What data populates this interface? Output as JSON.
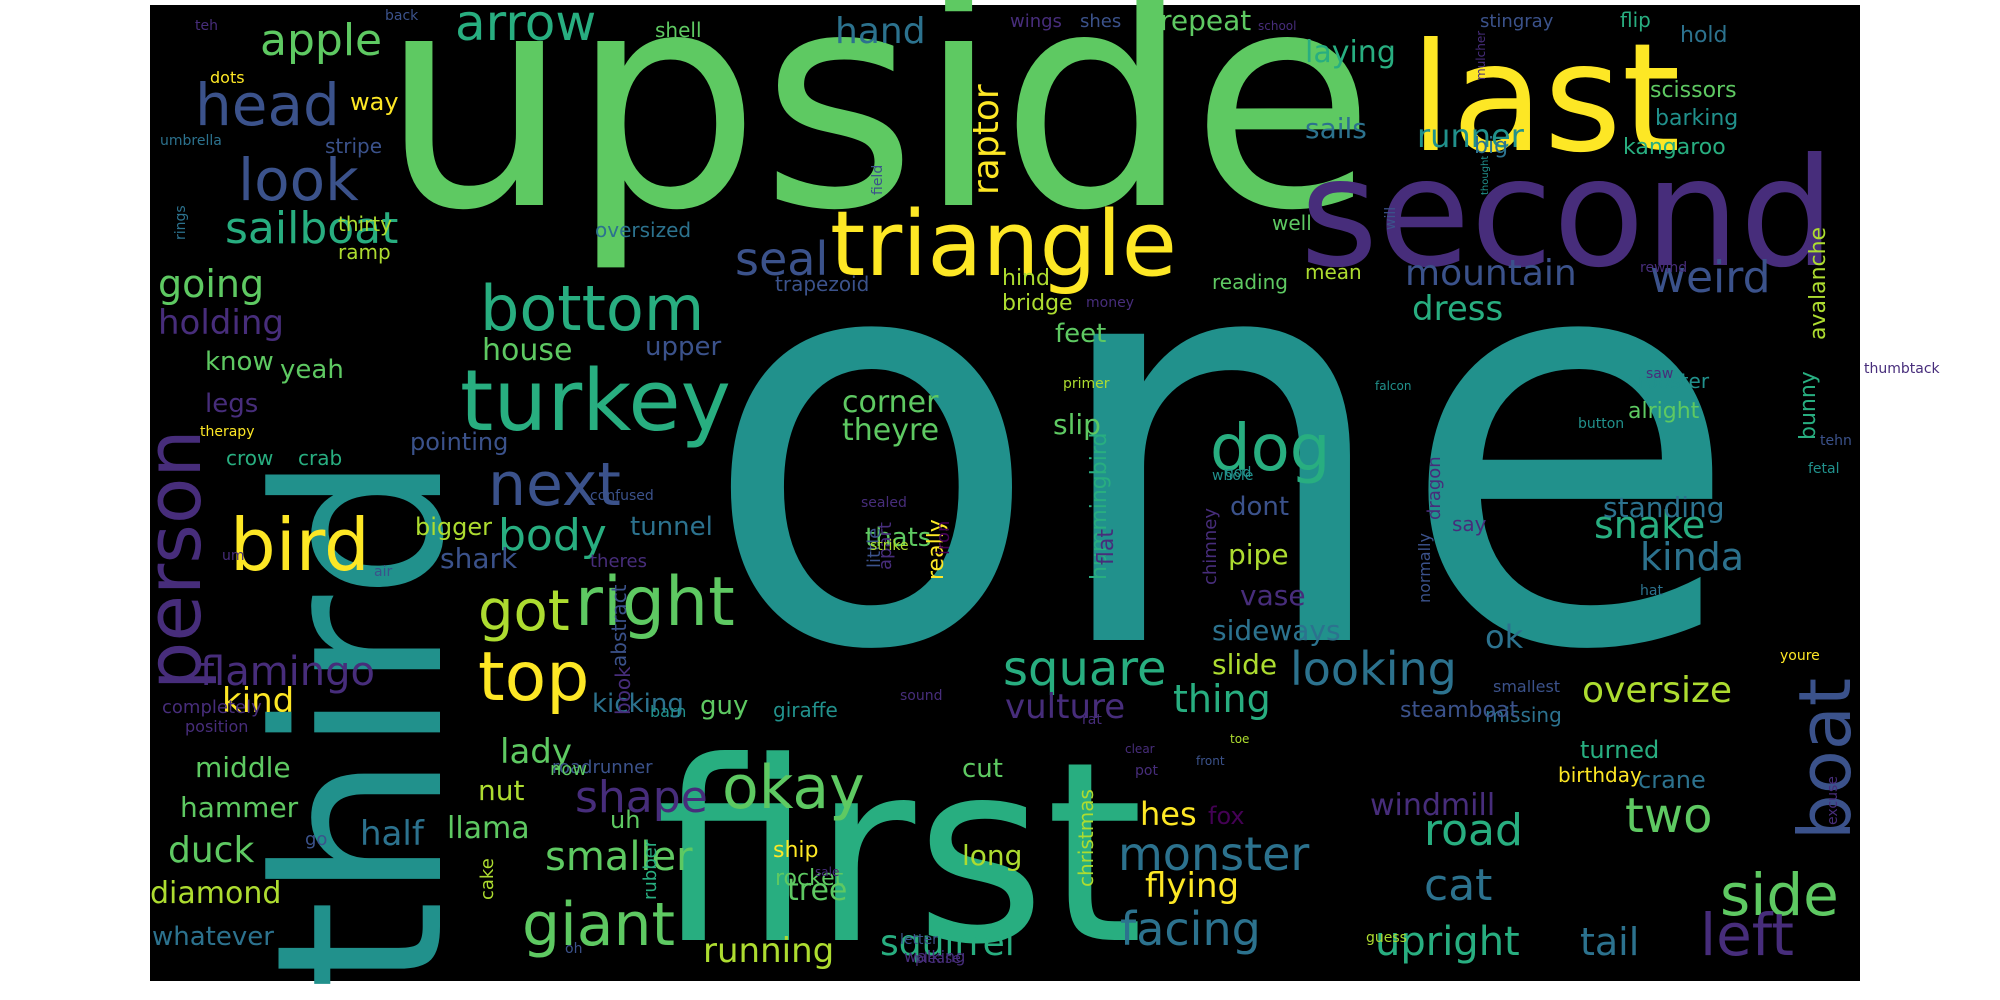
{
  "background": "#000000",
  "palette": {
    "p": "#440154",
    "i": "#472d7b",
    "b": "#3b528b",
    "s": "#2c728e",
    "t": "#21918c",
    "g": "#28ae80",
    "l": "#5ec962",
    "y": "#addc30",
    "u": "#fde725"
  },
  "words": [
    [
      "one",
      "t"
    ],
    [
      "upside",
      "l"
    ],
    [
      "first",
      "g"
    ],
    [
      "third",
      "t"
    ],
    [
      "second",
      "i"
    ],
    [
      "last",
      "u"
    ],
    [
      "triangle",
      "u"
    ],
    [
      "turkey",
      "g"
    ],
    [
      "person",
      "i"
    ],
    [
      "bird",
      "u"
    ],
    [
      "boat",
      "b"
    ],
    [
      "right",
      "l"
    ],
    [
      "top",
      "u"
    ],
    [
      "bottom",
      "g"
    ],
    [
      "dog",
      "g"
    ],
    [
      "next",
      "b"
    ],
    [
      "side",
      "l"
    ],
    [
      "left",
      "i"
    ],
    [
      "giant",
      "l"
    ],
    [
      "okay",
      "l"
    ],
    [
      "look",
      "b"
    ],
    [
      "head",
      "b"
    ],
    [
      "arrow",
      "g"
    ],
    [
      "got",
      "y"
    ],
    [
      "square",
      "g"
    ],
    [
      "body",
      "g"
    ],
    [
      "sailboat",
      "g"
    ],
    [
      "apple",
      "l"
    ],
    [
      "seal",
      "b"
    ],
    [
      "looking",
      "s"
    ],
    [
      "two",
      "l"
    ],
    [
      "shape",
      "i"
    ],
    [
      "flamingo",
      "i"
    ],
    [
      "facing",
      "s"
    ],
    [
      "monster",
      "s"
    ],
    [
      "road",
      "g"
    ],
    [
      "cat",
      "s"
    ],
    [
      "upright",
      "g"
    ],
    [
      "tail",
      "s"
    ],
    [
      "smaller",
      "l"
    ],
    [
      "weird",
      "b"
    ],
    [
      "mountain",
      "b"
    ],
    [
      "snake",
      "g"
    ],
    [
      "kinda",
      "s"
    ],
    [
      "thing",
      "g"
    ],
    [
      "oversize",
      "y"
    ],
    [
      "dress",
      "g"
    ],
    [
      "flying",
      "u"
    ],
    [
      "squirrel",
      "g"
    ],
    [
      "running",
      "y"
    ],
    [
      "lady",
      "l"
    ],
    [
      "kind",
      "u"
    ],
    [
      "going",
      "l"
    ],
    [
      "holding",
      "i"
    ],
    [
      "hand",
      "s"
    ],
    [
      "vulture",
      "i"
    ],
    [
      "duck",
      "l"
    ],
    [
      "diamond",
      "y"
    ],
    [
      "half",
      "s"
    ],
    [
      "llama",
      "l"
    ],
    [
      "tree",
      "l"
    ],
    [
      "hes",
      "u"
    ],
    [
      "corner",
      "l"
    ],
    [
      "theyre",
      "l"
    ],
    [
      "runner",
      "t"
    ],
    [
      "laying",
      "g"
    ],
    [
      "sails",
      "s"
    ],
    [
      "raptor",
      "u"
    ],
    [
      "repeat",
      "l"
    ],
    [
      "house",
      "l"
    ],
    [
      "upper",
      "b"
    ],
    [
      "dont",
      "b"
    ],
    [
      "pipe",
      "y"
    ],
    [
      "sideways",
      "s"
    ],
    [
      "slide",
      "y"
    ],
    [
      "vase",
      "i"
    ],
    [
      "windmill",
      "i"
    ],
    [
      "ok",
      "s"
    ],
    [
      "standing",
      "s"
    ],
    [
      "say",
      "i"
    ],
    [
      "middle",
      "l"
    ],
    [
      "hammer",
      "l"
    ],
    [
      "whatever",
      "s"
    ],
    [
      "know",
      "l"
    ],
    [
      "legs",
      "i"
    ],
    [
      "yeah",
      "l"
    ],
    [
      "feet",
      "l"
    ],
    [
      "slip",
      "l"
    ],
    [
      "tunnel",
      "s"
    ],
    [
      "shark",
      "b"
    ],
    [
      "thats",
      "l"
    ],
    [
      "pointing",
      "b"
    ],
    [
      "bigger",
      "y"
    ],
    [
      "nut",
      "y"
    ],
    [
      "guy",
      "l"
    ],
    [
      "cut",
      "l"
    ],
    [
      "kicking",
      "s"
    ],
    [
      "long",
      "y"
    ],
    [
      "uh",
      "l"
    ],
    [
      "crane",
      "s"
    ],
    [
      "turned",
      "g"
    ],
    [
      "birthday",
      "u"
    ],
    [
      "missing",
      "s"
    ],
    [
      "steamboat",
      "b"
    ],
    [
      "fox",
      "p"
    ],
    [
      "rocket",
      "l"
    ],
    [
      "ship",
      "u"
    ],
    [
      "way",
      "u"
    ],
    [
      "thirty",
      "y"
    ],
    [
      "ramp",
      "y"
    ],
    [
      "oversized",
      "s"
    ],
    [
      "stripe",
      "b"
    ],
    [
      "shell",
      "l"
    ],
    [
      "wings",
      "i"
    ],
    [
      "shes",
      "b"
    ],
    [
      "stingray",
      "b"
    ],
    [
      "flip",
      "g"
    ],
    [
      "hold",
      "s"
    ],
    [
      "scissors",
      "l"
    ],
    [
      "barking",
      "t"
    ],
    [
      "kangaroo",
      "g"
    ],
    [
      "big",
      "s"
    ],
    [
      "mean",
      "y"
    ],
    [
      "well",
      "l"
    ],
    [
      "hind",
      "y"
    ],
    [
      "bridge",
      "y"
    ],
    [
      "reading",
      "l"
    ],
    [
      "trapezoid",
      "b"
    ],
    [
      "alright",
      "l"
    ],
    [
      "rooster",
      "t"
    ],
    [
      "bunny",
      "g"
    ],
    [
      "avalanche",
      "y"
    ],
    [
      "dragon",
      "i"
    ],
    [
      "hummingbird",
      "g"
    ],
    [
      "chimney",
      "i"
    ],
    [
      "really",
      "u"
    ],
    [
      "iron",
      "p"
    ],
    [
      "apart",
      "i"
    ],
    [
      "flat",
      "i"
    ],
    [
      "little",
      "b"
    ],
    [
      "theres",
      "i"
    ],
    [
      "roadrunner",
      "b"
    ],
    [
      "abstract",
      "b"
    ],
    [
      "book",
      "i"
    ],
    [
      "now",
      "l"
    ],
    [
      "giraffe",
      "t"
    ],
    [
      "christmas",
      "y"
    ],
    [
      "rubber",
      "g"
    ],
    [
      "cake",
      "y"
    ],
    [
      "go",
      "b"
    ],
    [
      "umbrella",
      "s"
    ],
    [
      "rings",
      "s"
    ],
    [
      "teh",
      "i"
    ],
    [
      "back",
      "b"
    ],
    [
      "dots",
      "u"
    ],
    [
      "therapy",
      "u"
    ],
    [
      "crow",
      "g"
    ],
    [
      "crab",
      "g"
    ],
    [
      "strike",
      "y"
    ],
    [
      "confused",
      "b"
    ],
    [
      "sealed",
      "i"
    ],
    [
      "air",
      "b"
    ],
    [
      "um",
      "i"
    ],
    [
      "barn",
      "t"
    ],
    [
      "completely",
      "i"
    ],
    [
      "position",
      "i"
    ],
    [
      "field",
      "b"
    ],
    [
      "school",
      "i"
    ],
    [
      "mulcher",
      "i"
    ],
    [
      "thought",
      "t"
    ],
    [
      "rewind",
      "i"
    ],
    [
      "will",
      "b"
    ],
    [
      "sound",
      "i"
    ],
    [
      "money",
      "i"
    ],
    [
      "primer",
      "y"
    ],
    [
      "thumbtack",
      "i"
    ],
    [
      "saw",
      "i"
    ],
    [
      "tehn",
      "b"
    ],
    [
      "button",
      "t"
    ],
    [
      "fetal",
      "t"
    ],
    [
      "whole",
      "t"
    ],
    [
      "god",
      "t"
    ],
    [
      "hat",
      "s"
    ],
    [
      "normally",
      "b"
    ],
    [
      "youre",
      "u"
    ],
    [
      "smallest",
      "b"
    ],
    [
      "pot",
      "i"
    ],
    [
      "clear",
      "i"
    ],
    [
      "toe",
      "y"
    ],
    [
      "front",
      "b"
    ],
    [
      "excuse",
      "i"
    ],
    [
      "falcon",
      "t"
    ],
    [
      "sale",
      "i"
    ],
    [
      "oh",
      "b"
    ],
    [
      "please",
      "i"
    ],
    [
      "letter",
      "b"
    ],
    [
      "walking",
      "i"
    ],
    [
      "guess",
      "y"
    ],
    [
      "rat",
      "i"
    ]
  ]
}
